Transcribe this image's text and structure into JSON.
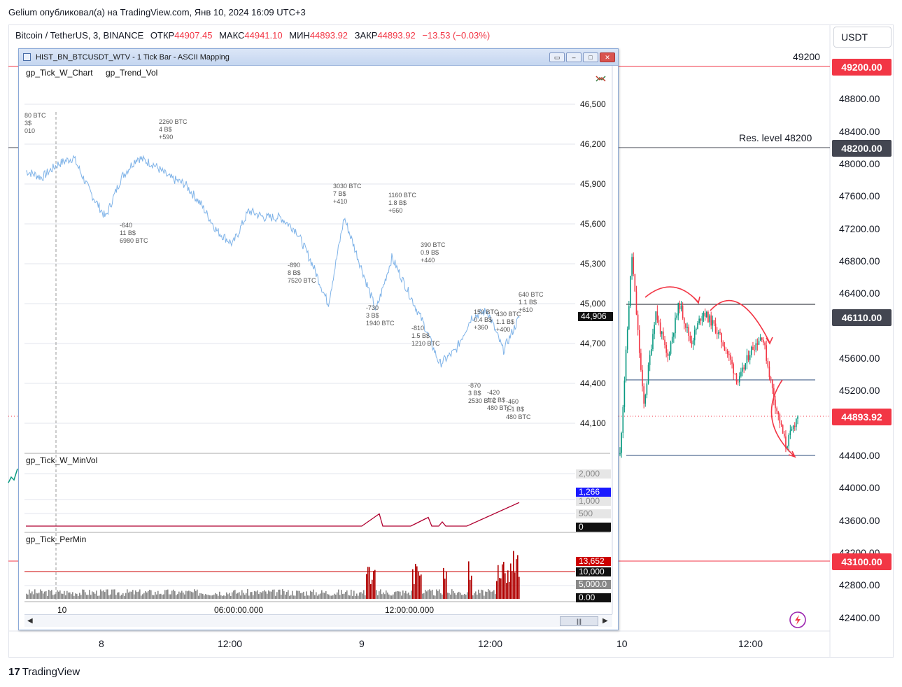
{
  "header": {
    "published_line": "Gelium опубликовал(а) на TradingView.com, Янв 10, 2024 16:09 UTC+3",
    "symbol": "Bitcoin / TetherUS, 3, BINANCE",
    "open_label": "ОТКР",
    "open_value": "44907.45",
    "high_label": "МАКС",
    "high_value": "44941.10",
    "low_label": "МИН",
    "low_value": "44893.92",
    "close_label": "ЗАКР",
    "close_value": "44893.92",
    "change": "−13.53 (−0.03%)"
  },
  "currency_button": "USDT",
  "price_axis": {
    "ticks": [
      "48800.00",
      "48400.00",
      "48000.00",
      "47600.00",
      "47200.00",
      "46800.00",
      "46400.00",
      "45600.00",
      "45200.00",
      "44400.00",
      "44000.00",
      "43600.00",
      "43200.00",
      "42800.00",
      "42400.00"
    ],
    "tags": [
      {
        "value": "49200.00",
        "color": "#f23645"
      },
      {
        "value": "48200.00",
        "color": "#434651"
      },
      {
        "value": "46110.00",
        "color": "#434651"
      },
      {
        "value": "44893.92",
        "color": "#f23645"
      },
      {
        "value": "43100.00",
        "color": "#f23645"
      }
    ]
  },
  "time_axis": [
    "8",
    "12:00",
    "9",
    "12:00",
    "10",
    "12:00"
  ],
  "levels": {
    "level_49200": "49200",
    "level_48200": "Res. level 48200"
  },
  "footer": {
    "brand": "TradingView",
    "logo_icon": "tradingview-logo-icon"
  },
  "inset": {
    "title": "HIST_BN_BTCUSDT_WTV - 1 Tick Bar - ASCII Mapping",
    "pane1_title_a": "gp_Tick_W_Chart",
    "pane1_title_b": "gp_Trend_Vol",
    "pane1_axis": [
      "46,500",
      "46,200",
      "45,900",
      "45,600",
      "45,300",
      "45,000",
      "44,700",
      "44,400",
      "44,100"
    ],
    "pane1_last": "44,906",
    "pane2_title": "gp_Tick_W_MinVol",
    "pane2_axis": [
      "2,000",
      "1,000",
      "500",
      "0"
    ],
    "pane2_last": "1,266",
    "pane3_title": "gp_Tick_PerMin",
    "pane3_axis": [
      "13,652",
      "10,000",
      "5,000.0",
      "0.00"
    ],
    "time_labels": [
      "10",
      "06:00:00.000",
      "12:00:00.000"
    ],
    "annotations": [
      {
        "lines": [
          "80 BTC",
          "3$",
          "010"
        ]
      },
      {
        "lines": [
          "2260 BTC",
          "4 B$",
          "+590"
        ]
      },
      {
        "lines": [
          "-640",
          "11 B$",
          "6980 BTC"
        ]
      },
      {
        "lines": [
          "3030 BTC",
          "7 B$",
          "+410"
        ]
      },
      {
        "lines": [
          "1160 BTC",
          "1.8 B$",
          "+660"
        ]
      },
      {
        "lines": [
          "-890",
          "8 B$",
          "7520 BTC"
        ]
      },
      {
        "lines": [
          "390 BTC",
          "0.9 B$",
          "+440"
        ]
      },
      {
        "lines": [
          "-730",
          "3 B$",
          "1940 BTC"
        ]
      },
      {
        "lines": [
          "640 BTC",
          "1.1 B$",
          "+610"
        ]
      },
      {
        "lines": [
          "150 BTC",
          "0.4 B$",
          "+360"
        ]
      },
      {
        "lines": [
          "430 BTC",
          "1.1 B$",
          "+400"
        ]
      },
      {
        "lines": [
          "-810",
          "1.5 B$",
          "1210 BTC"
        ]
      },
      {
        "lines": [
          "-870",
          "3 B$",
          "2530 BTC"
        ]
      },
      {
        "lines": [
          "-420",
          "1.2 B$",
          "480 BTC"
        ]
      },
      {
        "lines": [
          "-460",
          "1.1 B$",
          "480 BTC"
        ]
      }
    ]
  },
  "chart_data": [
    {
      "type": "line",
      "title": "HIST_BN_BTCUSDT_WTV - 1 Tick Bar - ASCII Mapping",
      "ylim": [
        44000,
        46600
      ],
      "series": [
        {
          "values": [
            46000,
            45950,
            46050,
            46100,
            45850,
            45650,
            45950,
            46100,
            46050,
            45950,
            45900,
            45750,
            45550,
            45450,
            45700,
            45650,
            45650,
            45550,
            45300,
            45000,
            45650,
            45300,
            44950,
            45350,
            45100,
            44850,
            44550,
            44650,
            44900,
            44950,
            44650,
            44900
          ]
        }
      ]
    },
    {
      "type": "line",
      "title": "",
      "ylim": [
        42200,
        49400
      ],
      "series": [
        {
          "values": [
            44400,
            46900,
            45000,
            46200,
            45600,
            46300,
            45800,
            46200,
            46000,
            45700,
            45300,
            45700,
            45900,
            45100,
            44500,
            44894
          ]
        }
      ]
    }
  ]
}
